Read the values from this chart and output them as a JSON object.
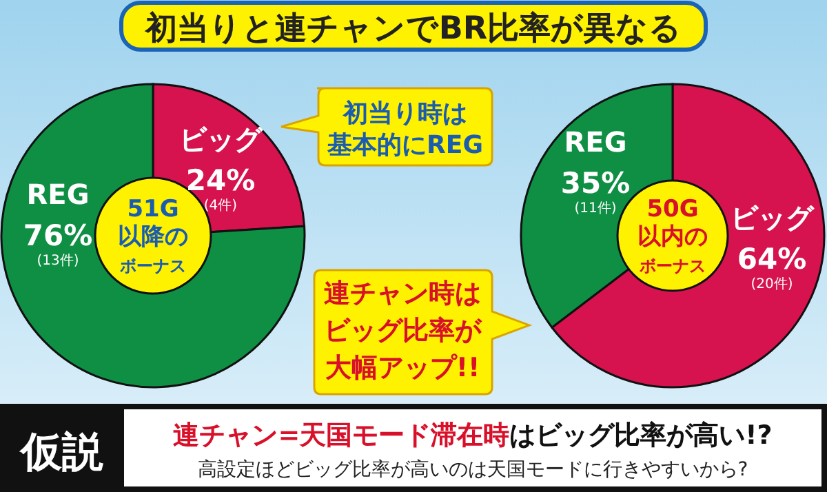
{
  "chart_data": [
    {
      "type": "donut",
      "title": "初当りと連チャンでBR比率が異なる",
      "subtitle": "51G以降のボーナス",
      "categories": [
        "ビッグ",
        "REG"
      ],
      "values": [
        24,
        76
      ],
      "colors": [
        "#d6124f",
        "#0e8f44"
      ],
      "value_labels": [
        "24%",
        "76%"
      ],
      "annotations": [
        {
          "text": "(4件)",
          "x": "ビッグ"
        },
        {
          "text": "(13件)",
          "x": "REG"
        },
        "初当り時は基本的にREG",
        "連チャン時はビッグ比率が大幅アップ!!",
        "仮説",
        "連チャン=天国モード滞在時",
        "はビッグ比率が高い!?",
        "高設定ほどビッグ比率が高いのは天国モードに行きやすいから?"
      ]
    },
    {
      "type": "donut",
      "subtitle": "50G以内のボーナス",
      "categories": [
        "ビッグ",
        "REG"
      ],
      "values": [
        64,
        35
      ],
      "colors": [
        "#d6124f",
        "#0e8f44"
      ],
      "value_labels": [
        "64%",
        "35%"
      ],
      "annotations": [
        {
          "text": "(20件)",
          "x": "ビッグ"
        },
        {
          "text": "(11件)",
          "x": "REG"
        }
      ]
    }
  ]
}
